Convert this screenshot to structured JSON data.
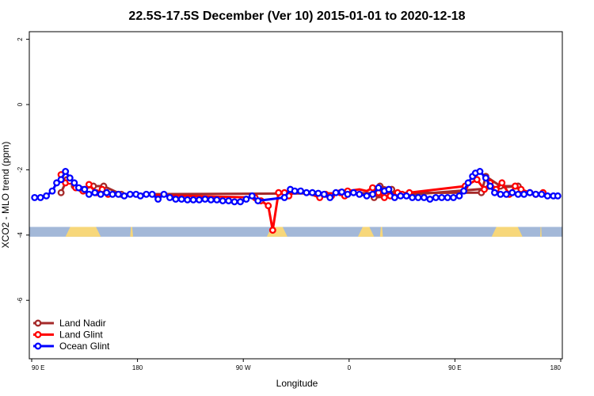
{
  "chart_data": {
    "type": "line",
    "title": "22.5S-17.5S December (Ver 10)   2015-01-01 to 2020-12-18",
    "xlabel": "Longitude",
    "ylabel": "XCO2 - MLO trend (ppm)",
    "xlim": [
      90,
      450
    ],
    "ylim": [
      -7.8,
      2.25
    ],
    "x_ticks": [
      {
        "value": 90,
        "label": "90 E"
      },
      {
        "value": 162,
        "label": "180"
      },
      {
        "value": 234,
        "label": "90 W"
      },
      {
        "value": 306,
        "label": "0"
      },
      {
        "value": 378,
        "label": "90 E"
      },
      {
        "value": 450,
        "label": "180"
      }
    ],
    "y_ticks": [
      {
        "value": 2,
        "label": "2"
      },
      {
        "value": 0,
        "label": "0"
      },
      {
        "value": -2,
        "label": "-2"
      },
      {
        "value": -4,
        "label": "-4"
      },
      {
        "value": -6,
        "label": "-6"
      }
    ],
    "land_ocean_strip": {
      "y_top": -3.75,
      "y_bottom": -4.05,
      "ocean_color": "#a3b8d8",
      "land_color": "#f7d77a",
      "land_x_ranges": [
        [
          113,
          137
        ],
        [
          157,
          159
        ],
        [
          250,
          264
        ],
        [
          312,
          323
        ],
        [
          327,
          329
        ],
        [
          403,
          424
        ],
        [
          436,
          437
        ]
      ]
    },
    "series": [
      {
        "name": "Land Nadir",
        "color": "#a52a2a",
        "x": [
          110,
          114,
          119,
          124,
          132,
          139,
          151,
          396,
          399,
          409,
          421,
          323,
          327,
          335
        ],
        "y": [
          -2.7,
          -2.3,
          -2.5,
          -2.6,
          -2.5,
          -2.5,
          -2.75,
          -2.7,
          -2.2,
          -2.5,
          -2.5,
          -2.85,
          -2.5,
          -2.6
        ]
      },
      {
        "name": "Land Glint",
        "color": "#ff0000",
        "x": [
          110,
          113,
          116,
          120,
          125,
          129,
          134,
          138,
          142,
          242,
          246,
          251,
          254,
          258,
          262,
          265,
          270,
          280,
          286,
          290,
          294,
          300,
          303,
          305,
          313,
          318,
          322,
          326,
          330,
          334,
          339,
          342,
          347,
          385,
          393,
          398,
          402,
          406,
          410,
          415,
          419,
          423,
          429,
          433,
          438
        ],
        "y": [
          -2.15,
          -2.4,
          -2.35,
          -2.55,
          -2.65,
          -2.45,
          -2.7,
          -2.6,
          -2.75,
          -2.85,
          -2.95,
          -3.1,
          -3.85,
          -2.7,
          -2.7,
          -2.8,
          -2.65,
          -2.75,
          -2.85,
          -2.75,
          -2.8,
          -2.7,
          -2.8,
          -2.65,
          -2.6,
          -2.65,
          -2.55,
          -2.7,
          -2.85,
          -2.8,
          -2.7,
          -2.75,
          -2.7,
          -2.5,
          -2.3,
          -2.6,
          -2.4,
          -2.6,
          -2.4,
          -2.75,
          -2.5,
          -2.6,
          -2.7,
          -2.75,
          -2.7
        ],
        "draw_points": [
          true,
          true,
          true,
          true,
          true,
          true,
          true,
          true,
          true,
          true,
          true,
          true,
          true,
          true,
          true,
          true,
          false,
          false,
          true,
          true,
          true,
          true,
          true,
          true,
          false,
          false,
          true,
          true,
          true,
          true,
          true,
          true,
          true,
          true,
          true,
          true,
          true,
          true,
          true,
          true,
          true,
          true,
          true,
          true,
          true
        ]
      },
      {
        "name": "Ocean Glint",
        "color": "#0000ff",
        "x": [
          92,
          96,
          100,
          104,
          107,
          110,
          113,
          116,
          119,
          122,
          126,
          129,
          133,
          137,
          141,
          145,
          149,
          153,
          157,
          161,
          164,
          168,
          172,
          176,
          180,
          184,
          188,
          192,
          196,
          200,
          204,
          208,
          212,
          216,
          220,
          224,
          228,
          232,
          236,
          240,
          244,
          262,
          266,
          269,
          273,
          277,
          281,
          285,
          289,
          293,
          297,
          301,
          305,
          309,
          313,
          318,
          322,
          326,
          330,
          333,
          337,
          341,
          345,
          349,
          353,
          357,
          361,
          365,
          369,
          373,
          377,
          381,
          384,
          387,
          390,
          392,
          395,
          399,
          402,
          405,
          409,
          413,
          417,
          421,
          425,
          429,
          433,
          437,
          441,
          445,
          448
        ],
        "y": [
          -2.85,
          -2.85,
          -2.8,
          -2.65,
          -2.4,
          -2.3,
          -2.05,
          -2.25,
          -2.4,
          -2.55,
          -2.6,
          -2.75,
          -2.7,
          -2.75,
          -2.7,
          -2.75,
          -2.75,
          -2.8,
          -2.75,
          -2.75,
          -2.8,
          -2.75,
          -2.75,
          -2.9,
          -2.75,
          -2.85,
          -2.9,
          -2.9,
          -2.92,
          -2.92,
          -2.92,
          -2.9,
          -2.92,
          -2.92,
          -2.95,
          -2.95,
          -2.98,
          -2.98,
          -2.9,
          -2.8,
          -2.95,
          -2.85,
          -2.6,
          -2.65,
          -2.65,
          -2.7,
          -2.7,
          -2.72,
          -2.75,
          -2.85,
          -2.7,
          -2.68,
          -2.75,
          -2.7,
          -2.75,
          -2.8,
          -2.75,
          -2.55,
          -2.65,
          -2.6,
          -2.85,
          -2.8,
          -2.8,
          -2.85,
          -2.85,
          -2.85,
          -2.9,
          -2.85,
          -2.85,
          -2.85,
          -2.85,
          -2.8,
          -2.65,
          -2.4,
          -2.2,
          -2.1,
          -2.05,
          -2.25,
          -2.5,
          -2.7,
          -2.75,
          -2.75,
          -2.7,
          -2.75,
          -2.75,
          -2.7,
          -2.75,
          -2.75,
          -2.8,
          -2.8,
          -2.8
        ]
      }
    ],
    "legend": {
      "position": "bottom-left",
      "entries": [
        "Land Nadir",
        "Land Glint",
        "Ocean Glint"
      ]
    }
  }
}
